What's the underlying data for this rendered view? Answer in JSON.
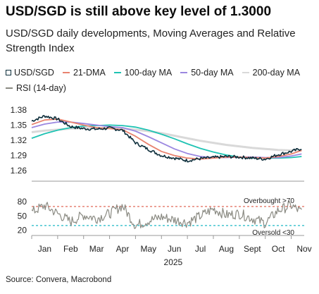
{
  "title": "USD/SGD is still above key level of 1.3000",
  "subtitle": "USD/SGD daily developments, Moving Averages and Relative Strength Index",
  "source": "Source: Convera, Macrobond",
  "legend": {
    "usdsgd": "USD/SGD",
    "dma21": "21-DMA",
    "dma100": "100-day MA",
    "dma50": "50-day MA",
    "dma200": "200-day MA",
    "rsi": "RSI (14-day)"
  },
  "colors": {
    "usdsgd": "#0c2d3a",
    "dma21": "#e8836f",
    "dma100": "#1fc3b3",
    "dma50": "#9b87e0",
    "dma200": "#d9d9d9",
    "rsi": "#8a8a82",
    "overbought": "#e26a5a",
    "oversold": "#1fb8c6"
  },
  "chart_data": [
    {
      "type": "line",
      "ylim": [
        1.245,
        1.395
      ],
      "yticks": [
        1.26,
        1.29,
        1.32,
        1.35,
        1.38
      ],
      "ytick_labels": [
        "1.26",
        "1.29",
        "1.32",
        "1.35",
        "1.38"
      ],
      "x": [
        0,
        0.5,
        1,
        1.5,
        2,
        2.5,
        3,
        3.5,
        4,
        4.5,
        5,
        5.5,
        6,
        6.5,
        7,
        7.5,
        8,
        8.5,
        9,
        9.5,
        10,
        10.4
      ],
      "series": [
        {
          "name": "USD/SGD",
          "key": "usdsgd",
          "values": [
            1.358,
            1.368,
            1.362,
            1.347,
            1.343,
            1.342,
            1.344,
            1.34,
            1.315,
            1.302,
            1.29,
            1.285,
            1.28,
            1.284,
            1.286,
            1.288,
            1.287,
            1.285,
            1.283,
            1.292,
            1.298,
            1.304
          ]
        },
        {
          "name": "21-DMA",
          "key": "dma21",
          "values": [
            1.351,
            1.36,
            1.362,
            1.356,
            1.35,
            1.345,
            1.343,
            1.341,
            1.328,
            1.312,
            1.298,
            1.29,
            1.285,
            1.283,
            1.285,
            1.287,
            1.287,
            1.286,
            1.285,
            1.288,
            1.293,
            1.3
          ]
        },
        {
          "name": "50-day MA",
          "key": "dma50",
          "values": [
            1.345,
            1.352,
            1.356,
            1.356,
            1.353,
            1.35,
            1.347,
            1.345,
            1.338,
            1.327,
            1.315,
            1.303,
            1.294,
            1.288,
            1.286,
            1.286,
            1.287,
            1.287,
            1.286,
            1.286,
            1.289,
            1.293
          ]
        },
        {
          "name": "100-day MA",
          "key": "dma100",
          "values": [
            1.324,
            1.333,
            1.34,
            1.345,
            1.348,
            1.349,
            1.35,
            1.349,
            1.346,
            1.34,
            1.332,
            1.323,
            1.313,
            1.304,
            1.297,
            1.291,
            1.287,
            1.285,
            1.285,
            1.285,
            1.286,
            1.288
          ]
        },
        {
          "name": "200-day MA",
          "key": "dma200",
          "values": [
            1.336,
            1.339,
            1.341,
            1.343,
            1.344,
            1.344,
            1.344,
            1.343,
            1.341,
            1.338,
            1.334,
            1.329,
            1.324,
            1.319,
            1.315,
            1.311,
            1.308,
            1.305,
            1.303,
            1.301,
            1.3,
            1.3
          ]
        }
      ]
    },
    {
      "type": "line",
      "ylim": [
        15,
        92
      ],
      "yticks": [
        20,
        50,
        80
      ],
      "ytick_labels": [
        "20",
        "50",
        "80"
      ],
      "x": [
        0,
        0.5,
        1,
        1.5,
        2,
        2.5,
        3,
        3.5,
        4,
        4.5,
        5,
        5.5,
        6,
        6.5,
        7,
        7.5,
        8,
        8.5,
        9,
        9.5,
        10,
        10.4
      ],
      "series": [
        {
          "name": "RSI (14-day)",
          "key": "rsi",
          "values": [
            58,
            72,
            55,
            38,
            52,
            45,
            55,
            72,
            30,
            40,
            48,
            42,
            36,
            50,
            65,
            52,
            55,
            45,
            35,
            62,
            72,
            58
          ]
        }
      ],
      "reference_lines": [
        {
          "value": 70,
          "label": "Overbought >70",
          "key": "overbought"
        },
        {
          "value": 30,
          "label": "Oversold <30",
          "key": "oversold"
        }
      ]
    }
  ],
  "xaxis": {
    "months": [
      "Jan",
      "Feb",
      "Mar",
      "Apr",
      "May",
      "Jun",
      "Jul",
      "Aug",
      "Sept",
      "Oct",
      "Nov"
    ],
    "year": "2025"
  }
}
